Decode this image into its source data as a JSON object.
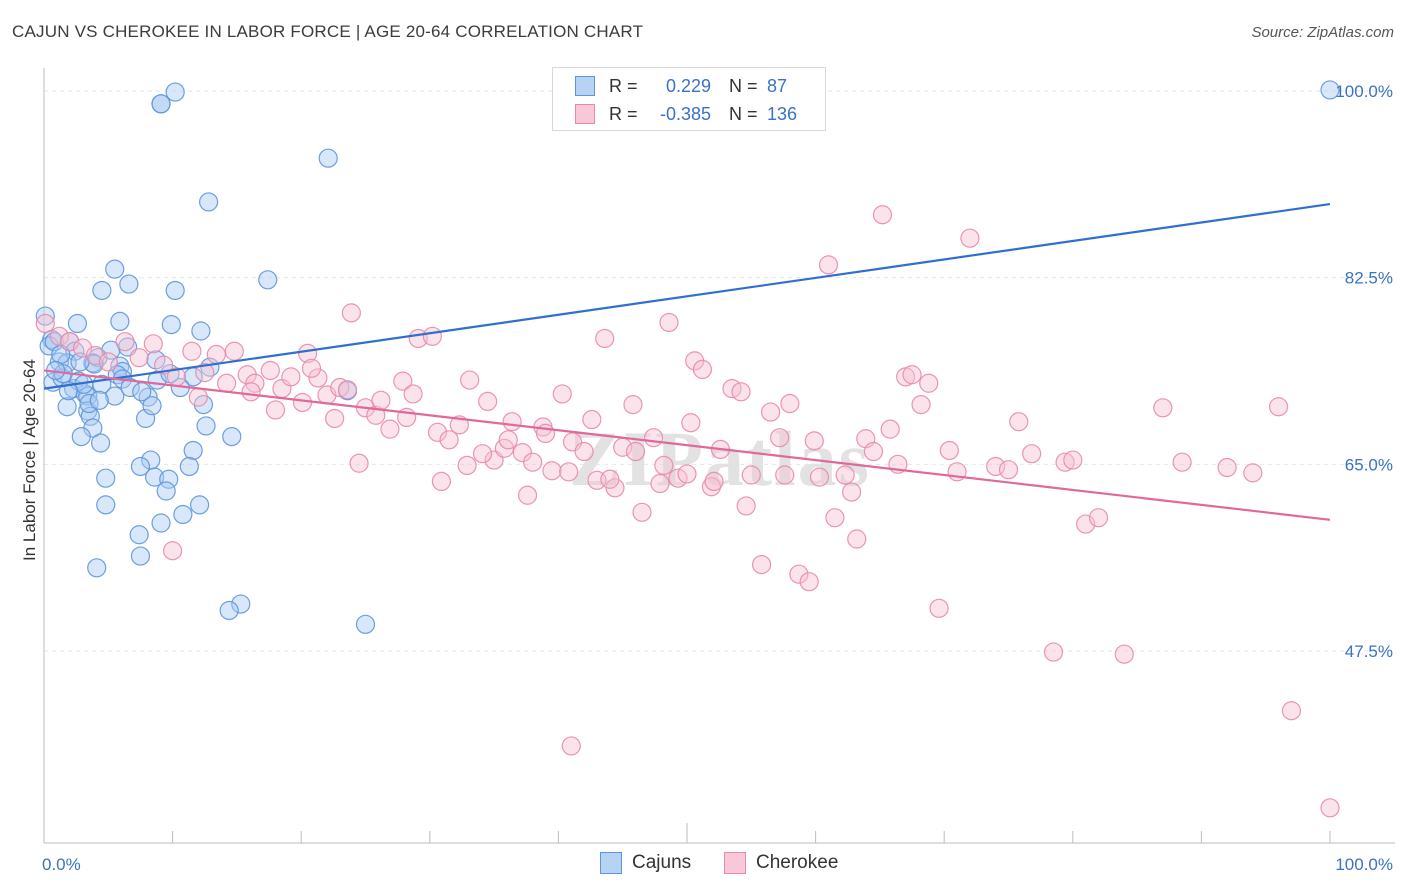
{
  "title": "CAJUN VS CHEROKEE IN LABOR FORCE | AGE 20-64 CORRELATION CHART",
  "source": "Source: ZipAtlas.com",
  "watermark": "ZIPatlas",
  "legend_top": {
    "rows": [
      {
        "r_label": "R =",
        "r_value": "0.229",
        "n_label": "N =",
        "n_value": "87"
      },
      {
        "r_label": "R =",
        "r_value": "-0.385",
        "n_label": "N =",
        "n_value": "136"
      }
    ]
  },
  "legend_bottom": [
    "Cajuns",
    "Cherokee"
  ],
  "colors": {
    "cajun_fill": "#a9c9f1",
    "cajun_stroke": "#5e95dc",
    "cajun_line": "#2f6fd0",
    "cherokee_fill": "#f7c0d3",
    "cherokee_stroke": "#e88aab",
    "cherokee_line": "#e0699a",
    "tick_text": "#3a72c6",
    "grid": "#e6e6e6"
  },
  "chart_data": {
    "type": "scatter",
    "title": "CAJUN VS CHEROKEE IN LABOR FORCE | AGE 20-64 CORRELATION CHART",
    "xlabel": "",
    "ylabel": "In Labor Force | Age 20-64",
    "xlim": [
      0,
      100
    ],
    "ylim": [
      29.5,
      101.5
    ],
    "x_tick_labels": [
      "0.0%",
      "100.0%"
    ],
    "y_ticks": [
      47.5,
      65.0,
      82.5,
      100.0
    ],
    "y_tick_labels": [
      "47.5%",
      "65.0%",
      "82.5%",
      "100.0%"
    ],
    "grid": true,
    "legend_position": "top-center",
    "series": [
      {
        "name": "Cajuns",
        "trend": {
          "x": [
            0,
            100
          ],
          "y": [
            72.1,
            89.4
          ]
        },
        "points": [
          [
            9.1,
            98.8
          ],
          [
            9.1,
            98.8
          ],
          [
            10.2,
            99.9
          ],
          [
            22.1,
            93.7
          ],
          [
            12.8,
            89.6
          ],
          [
            5.5,
            83.3
          ],
          [
            6.6,
            81.9
          ],
          [
            4.5,
            81.3
          ],
          [
            10.2,
            81.3
          ],
          [
            17.4,
            82.3
          ],
          [
            5.9,
            78.4
          ],
          [
            2.6,
            78.2
          ],
          [
            9.9,
            78.1
          ],
          [
            12.2,
            77.5
          ],
          [
            0.1,
            78.9
          ],
          [
            0.6,
            76.7
          ],
          [
            0.4,
            76.1
          ],
          [
            0.8,
            76.5
          ],
          [
            2.0,
            76.5
          ],
          [
            2.4,
            75.6
          ],
          [
            4.2,
            75.0
          ],
          [
            3.8,
            74.5
          ],
          [
            8.7,
            74.8
          ],
          [
            12.9,
            74.1
          ],
          [
            1.2,
            74.6
          ],
          [
            1.8,
            74.5
          ],
          [
            3.9,
            74.4
          ],
          [
            5.9,
            74.2
          ],
          [
            6.1,
            73.7
          ],
          [
            5.7,
            73.4
          ],
          [
            11.6,
            73.2
          ],
          [
            0.7,
            72.7
          ],
          [
            1.4,
            73.1
          ],
          [
            2.3,
            72.1
          ],
          [
            4.5,
            72.5
          ],
          [
            6.1,
            73.0
          ],
          [
            10.6,
            72.2
          ],
          [
            3.2,
            71.6
          ],
          [
            3.4,
            71.4
          ],
          [
            5.5,
            71.4
          ],
          [
            8.1,
            71.3
          ],
          [
            1.8,
            70.4
          ],
          [
            3.4,
            70.0
          ],
          [
            3.6,
            69.5
          ],
          [
            7.9,
            69.3
          ],
          [
            3.8,
            68.4
          ],
          [
            12.6,
            68.6
          ],
          [
            14.6,
            67.6
          ],
          [
            2.9,
            67.6
          ],
          [
            4.4,
            67.0
          ],
          [
            11.6,
            66.3
          ],
          [
            8.3,
            65.4
          ],
          [
            7.5,
            64.8
          ],
          [
            11.3,
            64.8
          ],
          [
            8.6,
            63.8
          ],
          [
            9.7,
            63.6
          ],
          [
            4.8,
            63.7
          ],
          [
            9.5,
            62.5
          ],
          [
            12.1,
            61.2
          ],
          [
            4.8,
            61.2
          ],
          [
            10.8,
            60.3
          ],
          [
            9.1,
            59.5
          ],
          [
            7.4,
            58.4
          ],
          [
            7.5,
            56.4
          ],
          [
            4.1,
            55.3
          ],
          [
            15.3,
            51.9
          ],
          [
            14.4,
            51.3
          ],
          [
            25.0,
            50.0
          ],
          [
            23.6,
            71.9
          ],
          [
            100.0,
            100.1
          ],
          [
            1.5,
            73.5
          ],
          [
            2.7,
            72.8
          ],
          [
            3.1,
            72.5
          ],
          [
            6.7,
            72.2
          ],
          [
            7.6,
            71.8
          ],
          [
            8.8,
            72.9
          ],
          [
            9.8,
            73.5
          ],
          [
            1.3,
            75.3
          ],
          [
            2.8,
            74.6
          ],
          [
            5.2,
            75.7
          ],
          [
            6.5,
            76.0
          ],
          [
            0.9,
            73.8
          ],
          [
            1.9,
            71.9
          ],
          [
            3.5,
            70.7
          ],
          [
            4.3,
            71.0
          ],
          [
            8.4,
            70.5
          ],
          [
            12.4,
            70.6
          ]
        ]
      },
      {
        "name": "Cherokee",
        "trend": {
          "x": [
            0,
            100
          ],
          "y": [
            73.8,
            59.8
          ]
        },
        "points": [
          [
            0.1,
            78.2
          ],
          [
            1.2,
            77.0
          ],
          [
            2.0,
            76.5
          ],
          [
            3.0,
            75.9
          ],
          [
            4.0,
            75.2
          ],
          [
            5.0,
            74.6
          ],
          [
            6.3,
            76.5
          ],
          [
            7.4,
            75.0
          ],
          [
            8.5,
            76.3
          ],
          [
            9.3,
            74.3
          ],
          [
            10.3,
            73.2
          ],
          [
            11.5,
            75.6
          ],
          [
            12.5,
            73.6
          ],
          [
            13.4,
            75.3
          ],
          [
            14.8,
            75.6
          ],
          [
            15.8,
            73.4
          ],
          [
            16.4,
            72.6
          ],
          [
            17.6,
            73.8
          ],
          [
            18.5,
            72.1
          ],
          [
            19.2,
            73.2
          ],
          [
            20.1,
            70.8
          ],
          [
            20.5,
            75.4
          ],
          [
            21.3,
            73.1
          ],
          [
            22.0,
            71.5
          ],
          [
            23.0,
            72.2
          ],
          [
            23.6,
            72.0
          ],
          [
            23.9,
            79.2
          ],
          [
            25.0,
            70.3
          ],
          [
            25.8,
            69.6
          ],
          [
            26.2,
            71.0
          ],
          [
            27.9,
            72.8
          ],
          [
            28.7,
            71.6
          ],
          [
            29.1,
            76.8
          ],
          [
            30.2,
            77.0
          ],
          [
            30.6,
            68.0
          ],
          [
            31.5,
            67.3
          ],
          [
            32.3,
            68.7
          ],
          [
            33.1,
            72.9
          ],
          [
            34.5,
            70.9
          ],
          [
            35.0,
            65.4
          ],
          [
            35.8,
            66.5
          ],
          [
            36.4,
            69.0
          ],
          [
            37.2,
            66.1
          ],
          [
            38.0,
            65.2
          ],
          [
            38.8,
            68.5
          ],
          [
            39.5,
            64.4
          ],
          [
            40.3,
            71.6
          ],
          [
            41.1,
            67.1
          ],
          [
            42.0,
            66.2
          ],
          [
            43.0,
            63.5
          ],
          [
            43.6,
            76.8
          ],
          [
            44.4,
            62.8
          ],
          [
            45.0,
            66.6
          ],
          [
            45.8,
            70.6
          ],
          [
            46.5,
            60.5
          ],
          [
            47.4,
            67.5
          ],
          [
            47.9,
            63.2
          ],
          [
            48.6,
            78.3
          ],
          [
            49.3,
            63.7
          ],
          [
            50.0,
            64.1
          ],
          [
            50.6,
            74.7
          ],
          [
            51.2,
            73.9
          ],
          [
            51.9,
            62.9
          ],
          [
            52.6,
            66.4
          ],
          [
            53.5,
            72.1
          ],
          [
            54.2,
            71.8
          ],
          [
            55.0,
            64.0
          ],
          [
            55.8,
            55.6
          ],
          [
            56.5,
            69.9
          ],
          [
            57.2,
            67.5
          ],
          [
            58.0,
            70.7
          ],
          [
            58.7,
            54.7
          ],
          [
            59.5,
            54.0
          ],
          [
            60.3,
            63.8
          ],
          [
            61.0,
            83.7
          ],
          [
            61.5,
            60.0
          ],
          [
            62.3,
            64.0
          ],
          [
            63.2,
            58.0
          ],
          [
            63.9,
            67.4
          ],
          [
            64.5,
            66.2
          ],
          [
            65.2,
            88.4
          ],
          [
            65.8,
            68.3
          ],
          [
            66.4,
            65.0
          ],
          [
            67.0,
            73.2
          ],
          [
            67.5,
            73.4
          ],
          [
            68.2,
            70.6
          ],
          [
            68.8,
            72.6
          ],
          [
            69.6,
            51.5
          ],
          [
            70.4,
            66.3
          ],
          [
            71.0,
            64.3
          ],
          [
            72.0,
            86.2
          ],
          [
            74.0,
            64.8
          ],
          [
            75.0,
            64.5
          ],
          [
            75.8,
            69.0
          ],
          [
            76.8,
            66.0
          ],
          [
            78.5,
            47.4
          ],
          [
            79.4,
            65.2
          ],
          [
            80.0,
            65.4
          ],
          [
            81.0,
            59.4
          ],
          [
            82.0,
            60.0
          ],
          [
            84.0,
            47.2
          ],
          [
            87.0,
            70.3
          ],
          [
            88.5,
            65.2
          ],
          [
            92.0,
            64.7
          ],
          [
            94.0,
            64.2
          ],
          [
            96.0,
            70.4
          ],
          [
            97.0,
            41.9
          ],
          [
            100.0,
            32.8
          ],
          [
            41.0,
            38.6
          ],
          [
            10.0,
            56.9
          ],
          [
            12.0,
            71.3
          ],
          [
            14.2,
            72.6
          ],
          [
            16.1,
            71.8
          ],
          [
            18.0,
            70.1
          ],
          [
            20.8,
            74.0
          ],
          [
            22.6,
            69.3
          ],
          [
            24.5,
            65.1
          ],
          [
            26.9,
            68.3
          ],
          [
            28.2,
            69.4
          ],
          [
            30.9,
            63.4
          ],
          [
            32.9,
            64.9
          ],
          [
            34.1,
            66.0
          ],
          [
            36.1,
            67.3
          ],
          [
            37.6,
            62.1
          ],
          [
            39.0,
            67.9
          ],
          [
            40.8,
            64.3
          ],
          [
            42.6,
            69.2
          ],
          [
            44.0,
            63.6
          ],
          [
            46.0,
            66.2
          ],
          [
            48.2,
            64.9
          ],
          [
            50.3,
            68.9
          ],
          [
            52.1,
            63.4
          ],
          [
            54.6,
            61.1
          ],
          [
            57.6,
            64.0
          ],
          [
            59.9,
            67.2
          ],
          [
            62.8,
            62.4
          ]
        ]
      }
    ]
  }
}
